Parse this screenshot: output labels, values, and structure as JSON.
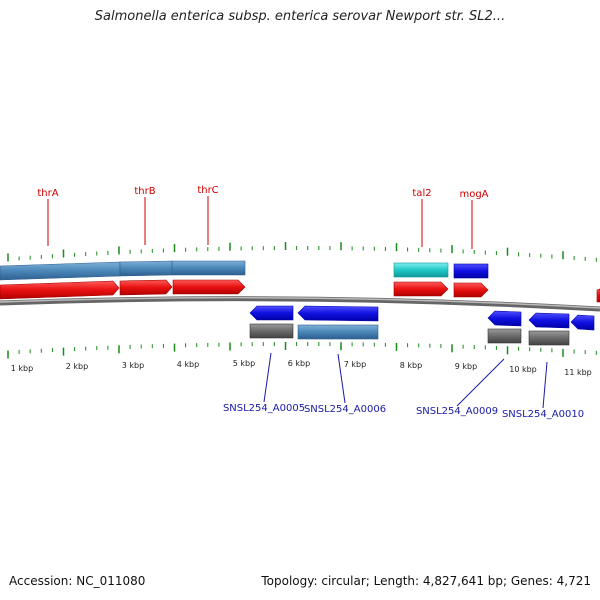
{
  "title": "Salmonella enterica subsp. enterica serovar Newport str. SL2...",
  "footer": {
    "accession": "Accession: NC_011080",
    "summary": "Topology: circular; Length: 4,827,641 bp; Genes: 4,721"
  },
  "colors": {
    "forward_cds": "#e81010",
    "forward_gene": "#4a86b8",
    "forward_rna": "#20c8c8",
    "forward_blue": "#1010e0",
    "reverse_cds": "#1010e0",
    "reverse_gene": "#4a86b8",
    "reverse_pseudo": "#6a6a6a",
    "backbone": "#888888",
    "tick": "#1a8a1a",
    "label_fwd": "#cc0000",
    "label_rev": "#1a1aa8"
  },
  "top_labels": [
    "thrA",
    "thrB",
    "thrC",
    "tal2",
    "mogA"
  ],
  "bottom_labels": [
    "SNSL254_A0005",
    "SNSL254_A0006",
    "SNSL254_A0009",
    "SNSL254_A0010"
  ],
  "kbp_labels": [
    "1 kbp",
    "2 kbp",
    "3 kbp",
    "4 kbp",
    "5 kbp",
    "6 kbp",
    "7 kbp",
    "8 kbp",
    "9 kbp",
    "10 kbp",
    "11 kbp"
  ]
}
